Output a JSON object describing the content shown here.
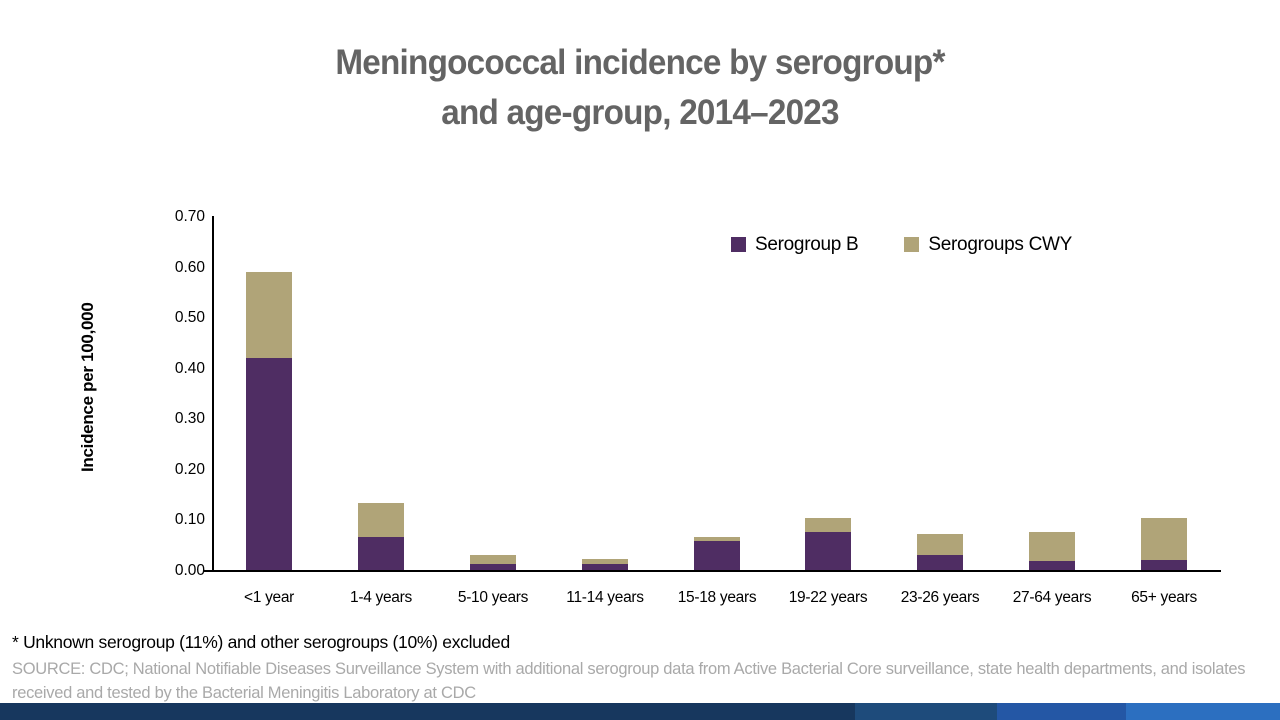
{
  "slide": {
    "title_line1": "Meningococcal incidence by serogroup*",
    "title_line2": "and age-group, 2014–2023",
    "title_color": "#646464",
    "footnote": "* Unknown serogroup (11%) and other serogroups (10%) excluded",
    "source": "SOURCE: CDC; National Notifiable Diseases Surveillance System with additional serogroup data from Active Bacterial Core surveillance, state health departments, and isolates received and tested by the Bacterial Meningitis Laboratory at CDC",
    "source_color": "#a9a9a9",
    "footer_bar_colors": [
      "#17375e",
      "#1e4b7b",
      "#2457a5",
      "#2c6fc0"
    ]
  },
  "chart_data": {
    "type": "bar",
    "stacked": true,
    "title": "Meningococcal incidence by serogroup* and age-group, 2014–2023",
    "xlabel": "",
    "ylabel": "Incidence per 100,000",
    "ylim": [
      0,
      0.7
    ],
    "ytick_step": 0.1,
    "ytick_format_decimals": 2,
    "grid": false,
    "legend_position": "top-right",
    "categories": [
      "<1 year",
      "1-4 years",
      "5-10 years",
      "11-14 years",
      "15-18 years",
      "19-22 years",
      "23-26 years",
      "27-64 years",
      "65+ years"
    ],
    "series": [
      {
        "name": "Serogroup B",
        "color": "#4f2d63",
        "values": [
          0.42,
          0.065,
          0.012,
          0.011,
          0.057,
          0.075,
          0.03,
          0.018,
          0.02
        ]
      },
      {
        "name": "Serogroups CWY",
        "color": "#b0a478",
        "values": [
          0.17,
          0.067,
          0.018,
          0.01,
          0.008,
          0.028,
          0.041,
          0.057,
          0.083
        ]
      }
    ]
  }
}
